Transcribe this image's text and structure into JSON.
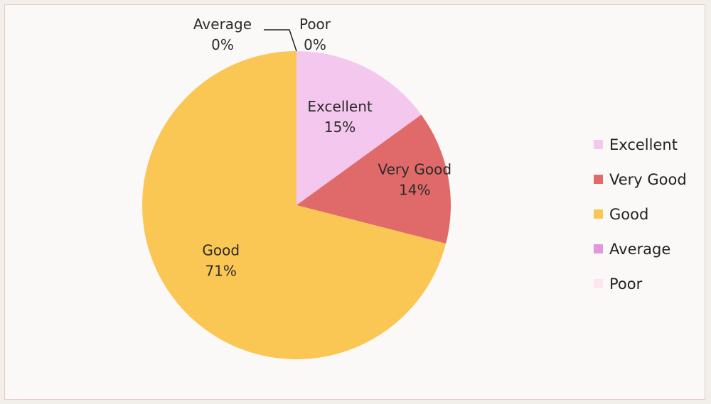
{
  "chart_data": {
    "type": "pie",
    "categories": [
      "Excellent",
      "Very Good",
      "Good",
      "Average",
      "Poor"
    ],
    "values": [
      15,
      14,
      71,
      0,
      0
    ],
    "labels": [
      "15%",
      "14%",
      "71%",
      "0%",
      "0%"
    ],
    "colors": [
      "#f4c8ee",
      "#e06a6a",
      "#fac654",
      "#e296dc",
      "#f9e6ef"
    ],
    "title": "",
    "legend_position": "right"
  }
}
